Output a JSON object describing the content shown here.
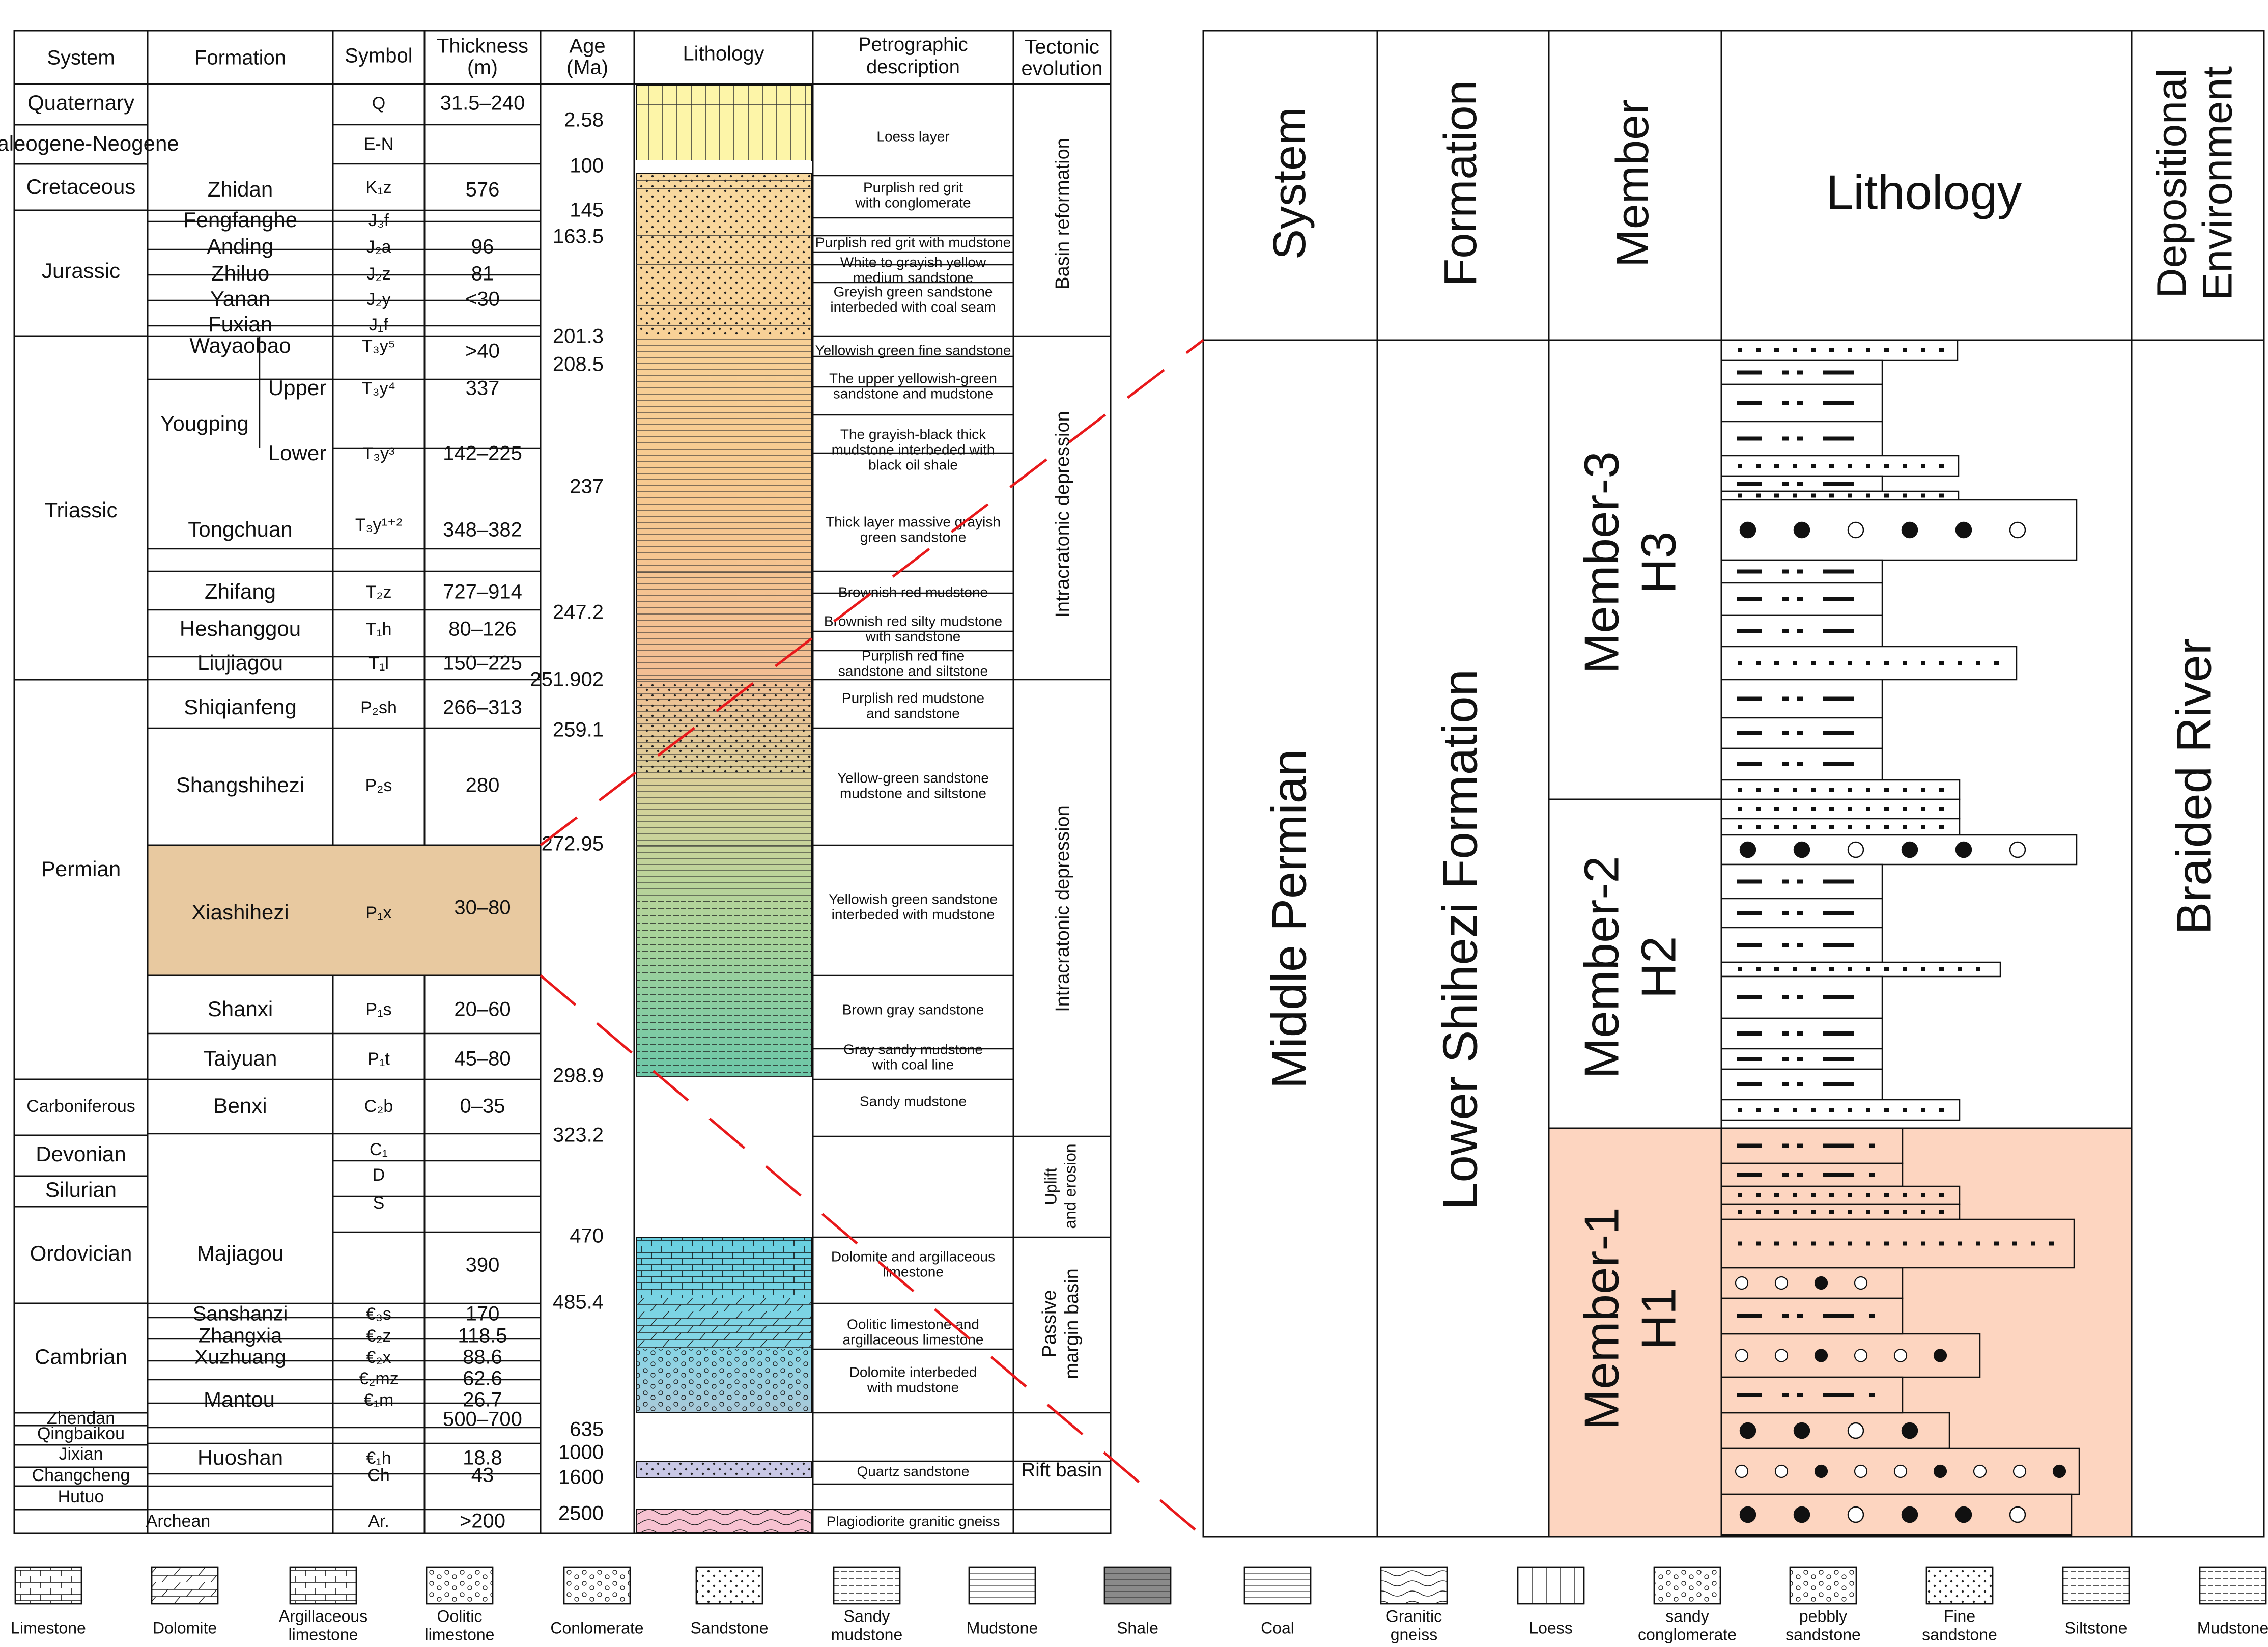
{
  "left_headers": {
    "system": "System",
    "formation": "Formation",
    "symbol": "Symbol",
    "thickness": [
      "Thickness",
      "(m)"
    ],
    "age": [
      "Age",
      "(Ma)"
    ],
    "lithology": "Lithology",
    "petro": [
      "Petrographic",
      "description"
    ],
    "tectonic": [
      "Tectonic",
      "evolution"
    ]
  },
  "systems": [
    "Quaternary",
    "Paleogene-Neogene",
    "Cretaceous",
    "Jurassic",
    "Triassic",
    "Permian",
    "Carboniferous",
    "Devonian",
    "Silurian",
    "Ordovician",
    "Cambrian",
    "Zhendan",
    "Qingbaikou",
    "Jixian",
    "Changcheng",
    "Hutuo",
    "Archean"
  ],
  "formations": [
    "Zhidan",
    "Fengfanghe",
    "Anding",
    "Zhiluo",
    "Yanan",
    "Fuxian",
    "Wayaobao",
    "Yougping",
    "Upper",
    "Lower",
    "Tongchuan",
    "Zhifang",
    "Heshanggou",
    "Liujiagou",
    "Shiqianfeng",
    "Shangshihezi",
    "Xiashihezi",
    "Shanxi",
    "Taiyuan",
    "Benxi",
    "Majiagou",
    "Sanshanzi",
    "Zhangxia",
    "Xuzhuang",
    "Mantou",
    "Huoshan"
  ],
  "symbols": [
    "Q",
    "E-N",
    "K₁z",
    "J₃f",
    "J₂a",
    "J₂z",
    "J₂y",
    "J₁f",
    "T₃y⁵",
    "T₃y⁴",
    "T₃y³",
    "T₃y¹⁺²",
    "T₂z",
    "T₁h",
    "T₁l",
    "P₂sh",
    "P₂s",
    "P₁x",
    "P₁s",
    "P₁t",
    "C₂b",
    "C₁",
    "D",
    "S",
    "€₃s",
    "€₂z",
    "€₂x",
    "€₂mz",
    "€₁m",
    "€₁h",
    "Ch",
    "Ar."
  ],
  "thicknesses": [
    "31.5–240",
    "576",
    "96",
    "81",
    "<30",
    ">40",
    "337",
    "142–225",
    "348–382",
    "727–914",
    "80–126",
    "150–225",
    "266–313",
    "280",
    "30–80",
    "20–60",
    "45–80",
    "0–35",
    "390",
    "170",
    "118.5",
    "88.6",
    "62.6",
    "26.7",
    "500–700",
    "18.8",
    "43",
    ">200"
  ],
  "ages": [
    "2.58",
    "100",
    "145",
    "163.5",
    "201.3",
    "208.5",
    "237",
    "247.2",
    "251.902",
    "259.1",
    "272.95",
    "298.9",
    "323.2",
    "470",
    "485.4",
    "635",
    "1000",
    "1600",
    "2500"
  ],
  "petro": [
    "Loess layer",
    "Purplish red grit",
    "with conglomerate",
    "Purplish red grit with mudstone",
    "White to grayish yellow",
    "medium sandstone",
    "Greyish green sandstone",
    "interbeded with coal seam",
    "Yellowish green fine sandstone",
    "The upper yellowish-green",
    "sandstone and mudstone",
    "The grayish-black thick",
    "mudstone interbeded with",
    "black oil shale",
    "Thick layer massive grayish",
    "green sandstone",
    "Brownish red mudstone",
    "Brownish red silty mudstone",
    "with sandstone",
    "Purplish red fine",
    "sandstone and siltstone",
    "Purplish red mudstone",
    "and sandstone",
    "Yellow-green sandstone",
    "mudstone and siltstone",
    "Yellowish green sandstone",
    "interbeded with mudstone",
    "Brown gray sandstone",
    "Gray sandy mudstone",
    "with coal line",
    "Sandy mudstone",
    "Dolomite and argillaceous",
    "limestone",
    "Oolitic limestone and",
    "argillaceous limestone",
    "Dolomite interbeded",
    "with mudstone",
    "Quartz sandstone",
    "Plagiodiorite granitic gneiss"
  ],
  "tectonic": [
    "Basin reformation",
    "Intracratonic depression",
    "Intracratonic depression",
    "Uplift",
    "and erosion",
    "Passive",
    "margin basin",
    "Rift basin"
  ],
  "right_headers": {
    "system": "System",
    "formation": "Formation",
    "member": "Member",
    "lithology": "Lithology",
    "environment": [
      "Depositional",
      "Environment"
    ]
  },
  "right_labels": {
    "system": "Middle Permian",
    "formation": "Lower Shihezi Formation",
    "member3": [
      "Member-3",
      "H3"
    ],
    "member2": [
      "Member-2",
      "H2"
    ],
    "member1": [
      "Member-1",
      "H1"
    ],
    "environment": "Braided River"
  },
  "legend": [
    {
      "key": "limestone",
      "label": [
        "Limestone"
      ]
    },
    {
      "key": "dolomite",
      "label": [
        "Dolomite"
      ]
    },
    {
      "key": "arg_limestone",
      "label": [
        "Argillaceous",
        "limestone"
      ]
    },
    {
      "key": "oolitic",
      "label": [
        "Oolitic",
        "limestone"
      ]
    },
    {
      "key": "conglomerate",
      "label": [
        "Conlomerate"
      ]
    },
    {
      "key": "sandstone",
      "label": [
        "Sandstone"
      ]
    },
    {
      "key": "sandy_mudstone",
      "label": [
        "Sandy",
        "mudstone"
      ]
    },
    {
      "key": "mudstone",
      "label": [
        "Mudstone"
      ]
    },
    {
      "key": "shale",
      "label": [
        "Shale"
      ]
    },
    {
      "key": "coal",
      "label": [
        "Coal"
      ]
    },
    {
      "key": "gneiss",
      "label": [
        "Granitic",
        "gneiss"
      ]
    },
    {
      "key": "loess",
      "label": [
        "Loess"
      ]
    },
    {
      "key": "sandy_cong",
      "label": [
        "sandy",
        "conglomerate"
      ]
    },
    {
      "key": "pebbly",
      "label": [
        "pebbly",
        "sandstone"
      ]
    },
    {
      "key": "fine_sand",
      "label": [
        "Fine",
        "sandstone"
      ]
    },
    {
      "key": "siltstone",
      "label": [
        "Siltstone"
      ]
    },
    {
      "key": "mudstone2",
      "label": [
        "Mudstone"
      ]
    }
  ],
  "colors": {
    "xiashihezi_fill": "#e8c9a0",
    "member1_fill": "#fdd5c0",
    "connector": "#e8191b",
    "loess": "#fdf5a8",
    "teal": "#6cc7a8",
    "cyan": "#7dd3e4",
    "orange": "#f6c08e"
  }
}
